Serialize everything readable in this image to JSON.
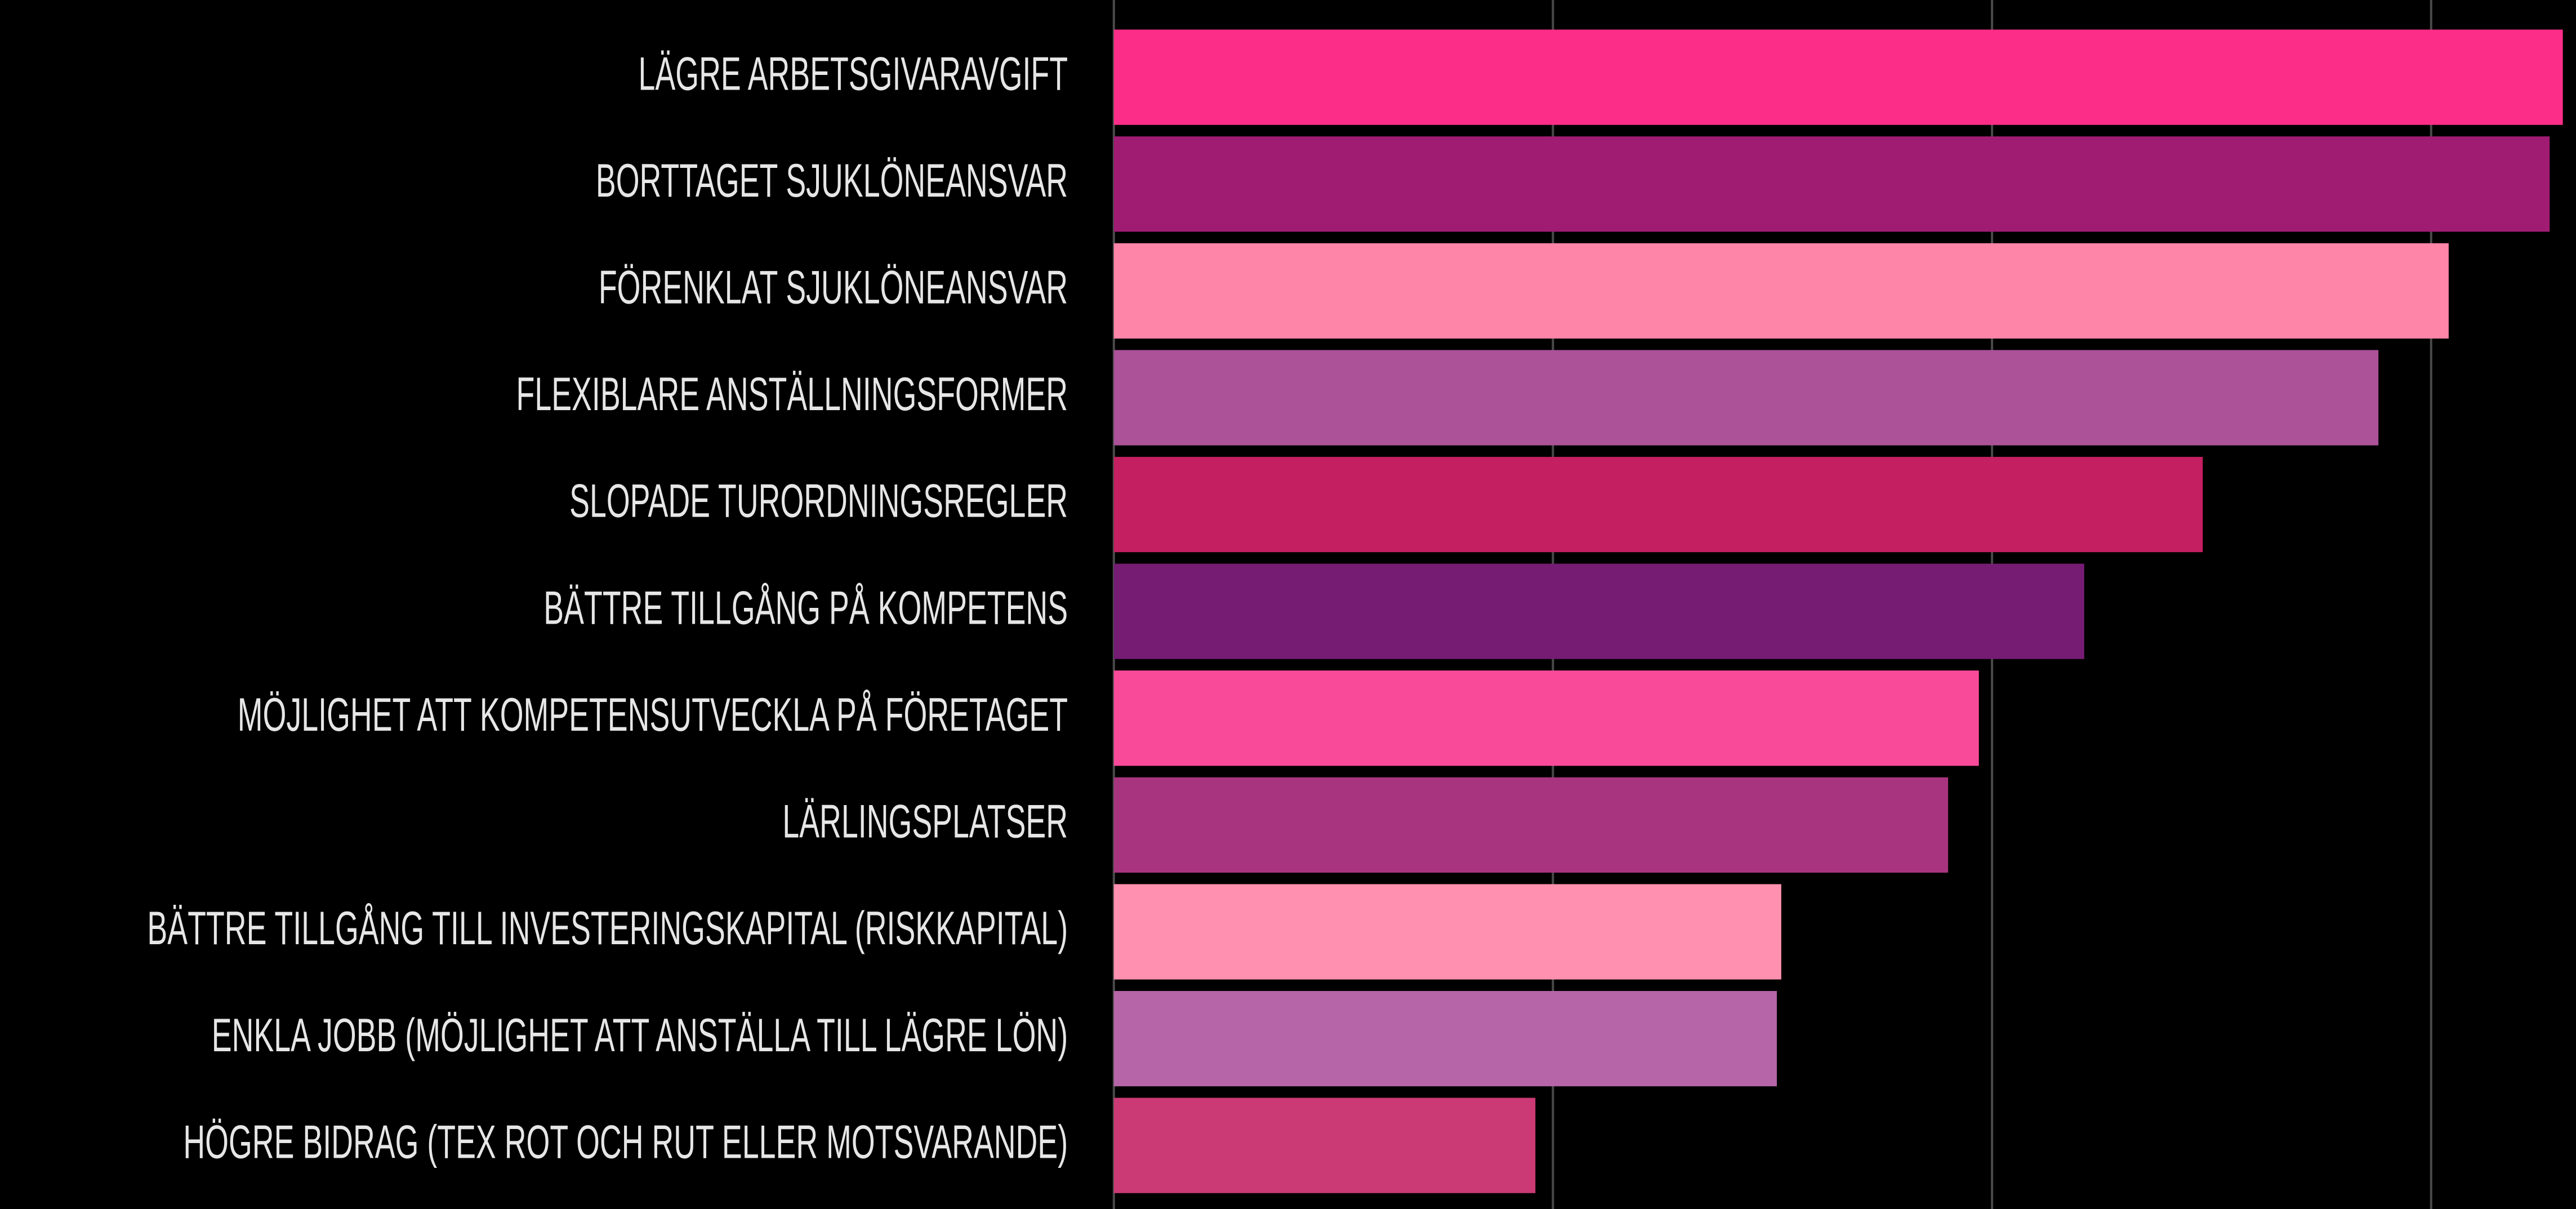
{
  "chart_data": {
    "type": "barh",
    "categories": [
      "LÄGRE ARBETSGIVARAVGIFT",
      "BORTTAGET SJUKLÖNEANSVAR",
      "FÖRENKLAT SJUKLÖNEANSVAR",
      "FLEXIBLARE ANSTÄLLNINGSFORMER",
      "SLOPADE TURORDNINGSREGLER",
      "BÄTTRE TILLGÅNG PÅ KOMPETENS",
      "MÖJLIGHET ATT KOMPETENSUTVECKLA PÅ FÖRETAGET",
      "LÄRLINGSPLATSER",
      "BÄTTRE TILLGÅNG TILL INVESTERINGSKAPITAL (RISKKAPITAL)",
      "ENKLA JOBB (MÖJLIGHET ATT ANSTÄLLA TILL LÄGRE LÖN)",
      "HÖGRE BIDRAG (TEX ROT OCH RUT ELLER MOTSVARANDE)"
    ],
    "values": [
      33.0,
      32.7,
      30.4,
      28.8,
      24.8,
      22.1,
      19.7,
      19.0,
      15.2,
      15.1,
      9.6
    ],
    "colors": [
      "#fc2d88",
      "#a01c73",
      "#ff85a8",
      "#ab5299",
      "#c41f60",
      "#761c73",
      "#f94a9a",
      "#a8347f",
      "#ff90b0",
      "#b565a8",
      "#cc3a75"
    ],
    "xlim": [
      0,
      33.3
    ],
    "xticks": [
      0,
      10,
      20,
      30
    ],
    "grid": true
  }
}
